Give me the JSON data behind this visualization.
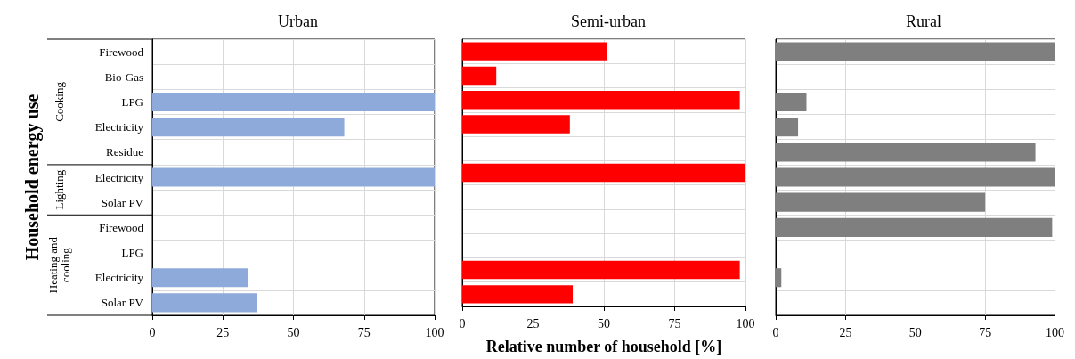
{
  "chart_data": [
    {
      "type": "bar",
      "orientation": "horizontal",
      "title": "Urban",
      "ylabel": "Household energy use",
      "annotations": [
        "Cooking",
        "Lighting",
        "Heating and cooling"
      ],
      "categories": [
        "Firewood",
        "Bio-Gas",
        "LPG",
        "Electricity",
        "Residue",
        "Electricity",
        "Solar PV",
        "Firewood",
        "LPG",
        "Electricity",
        "Solar PV"
      ],
      "values": [
        0,
        0,
        100,
        68,
        0,
        100,
        0,
        0,
        0,
        34,
        37
      ],
      "color": "#8eaadb",
      "xlim": [
        0,
        100
      ],
      "xticks": [
        0,
        25,
        50,
        75,
        100
      ],
      "grid": true
    },
    {
      "type": "bar",
      "orientation": "horizontal",
      "title": "Semi-urban",
      "xlabel": "Relative number of household [%]",
      "categories": [
        null,
        null,
        null,
        null,
        null,
        null,
        null,
        null,
        null,
        null,
        null
      ],
      "values": [
        51,
        12,
        98,
        38,
        0,
        100,
        0,
        0,
        0,
        98,
        39
      ],
      "color": "#ff0000",
      "xlim": [
        0,
        100
      ],
      "xticks": [
        0,
        25,
        50,
        75,
        100
      ],
      "grid": true,
      "tick_labels": "x"
    },
    {
      "type": "bar",
      "orientation": "horizontal",
      "title": "Rural",
      "categories": [
        null,
        null,
        null,
        null,
        null,
        null,
        null,
        null,
        null,
        null,
        null
      ],
      "values": [
        100,
        0,
        11,
        8,
        93,
        100,
        75,
        99,
        0,
        2,
        0
      ],
      "color": "#7f7f7f",
      "xlim": [
        0,
        100
      ],
      "xticks": [
        0,
        25,
        50,
        75,
        100
      ],
      "grid": true,
      "tick_labels": "x"
    }
  ]
}
